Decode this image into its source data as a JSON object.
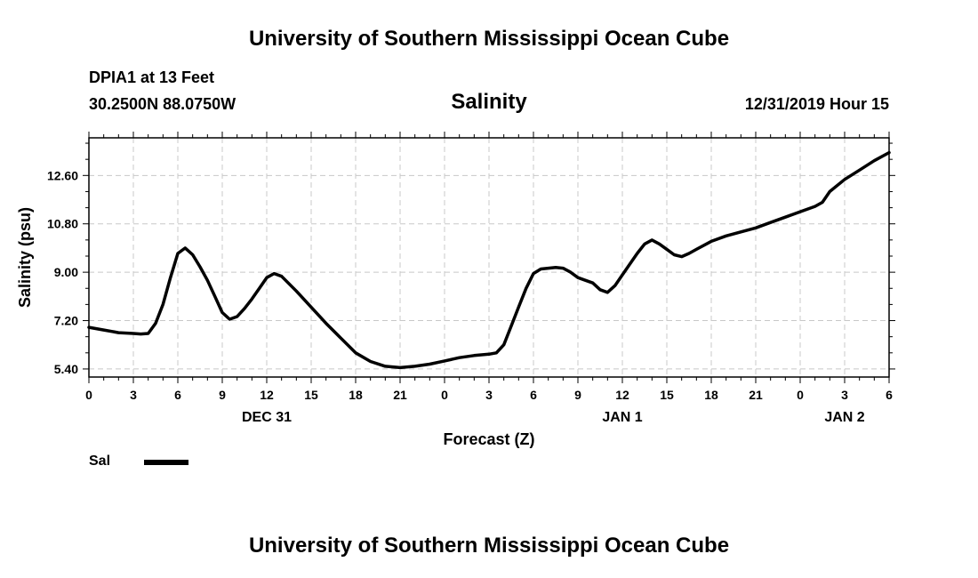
{
  "header": {
    "title_top": "University of Southern Mississippi Ocean Cube",
    "station": "DPIA1 at 13 Feet",
    "coords": "30.2500N 88.0750W",
    "chart_title": "Salinity",
    "datetime": "12/31/2019 Hour 15"
  },
  "footer": {
    "title_bottom": "University of Southern Mississippi Ocean Cube"
  },
  "legend": {
    "label": "Sal",
    "color": "#000000"
  },
  "chart_data": {
    "type": "line",
    "title": "Salinity",
    "xlabel": "Forecast (Z)",
    "ylabel": "Salinity (psu)",
    "xlim": [
      0,
      54
    ],
    "ylim": [
      5.1,
      14.0
    ],
    "grid": true,
    "x_ticks": [
      0,
      3,
      6,
      9,
      12,
      15,
      18,
      21,
      24,
      27,
      30,
      33,
      36,
      39,
      42,
      45,
      48,
      51,
      54
    ],
    "x_tick_labels": [
      "0",
      "3",
      "6",
      "9",
      "12",
      "15",
      "18",
      "21",
      "0",
      "3",
      "6",
      "9",
      "12",
      "15",
      "18",
      "21",
      "0",
      "3",
      "6"
    ],
    "y_ticks": [
      5.4,
      7.2,
      9.0,
      10.8,
      12.6
    ],
    "y_tick_labels": [
      "5.40",
      "7.20",
      "9.00",
      "10.80",
      "12.60"
    ],
    "day_labels": [
      {
        "x": 12,
        "label": "DEC 31"
      },
      {
        "x": 36,
        "label": "JAN 1"
      },
      {
        "x": 51,
        "label": "JAN 2"
      }
    ],
    "series": [
      {
        "name": "Sal",
        "color": "#000000",
        "x": [
          0,
          1,
          2,
          3,
          3.5,
          4,
          4.5,
          5,
          5.5,
          6,
          6.5,
          7,
          7.5,
          8,
          8.5,
          9,
          9.5,
          10,
          10.5,
          11,
          11.5,
          12,
          12.5,
          13,
          14,
          15,
          16,
          17,
          18,
          19,
          20,
          21,
          22,
          23,
          24,
          25,
          26,
          27,
          27.5,
          28,
          28.5,
          29,
          29.5,
          30,
          30.5,
          31,
          31.5,
          32,
          32.5,
          33,
          33.5,
          34,
          34.5,
          35,
          35.5,
          36,
          36.5,
          37,
          37.5,
          38,
          38.5,
          39,
          39.5,
          40,
          40.5,
          41,
          42,
          43,
          44,
          45,
          46,
          47,
          48,
          49,
          49.5,
          50,
          51,
          52,
          53,
          54
        ],
        "values": [
          6.95,
          6.85,
          6.75,
          6.72,
          6.7,
          6.72,
          7.1,
          7.8,
          8.8,
          9.7,
          9.9,
          9.65,
          9.2,
          8.7,
          8.1,
          7.5,
          7.25,
          7.35,
          7.65,
          8.0,
          8.4,
          8.8,
          8.95,
          8.85,
          8.3,
          7.7,
          7.1,
          6.55,
          6.0,
          5.68,
          5.5,
          5.45,
          5.5,
          5.58,
          5.7,
          5.82,
          5.9,
          5.95,
          6.0,
          6.3,
          7.0,
          7.7,
          8.4,
          8.95,
          9.12,
          9.15,
          9.18,
          9.15,
          9.0,
          8.8,
          8.7,
          8.6,
          8.35,
          8.25,
          8.5,
          8.9,
          9.3,
          9.7,
          10.05,
          10.2,
          10.05,
          9.85,
          9.65,
          9.58,
          9.7,
          9.85,
          10.15,
          10.35,
          10.5,
          10.65,
          10.85,
          11.05,
          11.25,
          11.45,
          11.6,
          12.0,
          12.45,
          12.8,
          13.15,
          13.45
        ]
      }
    ]
  }
}
